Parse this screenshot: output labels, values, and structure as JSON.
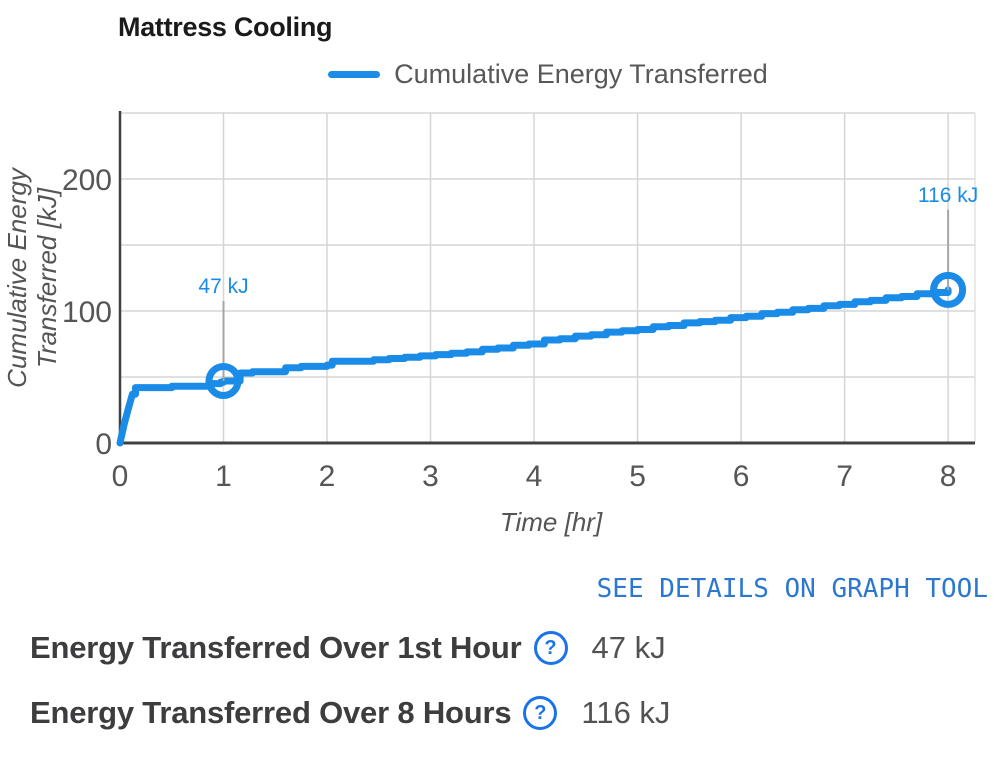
{
  "title": "Mattress Cooling",
  "link": {
    "label": "SEE DETAILS ON GRAPH TOOL"
  },
  "icons": {
    "help_glyph": "?"
  },
  "stats": [
    {
      "label": "Energy Transferred Over 1st Hour",
      "value": "47 kJ"
    },
    {
      "label": "Energy Transferred Over 8 Hours",
      "value": "116 kJ"
    }
  ],
  "colors": {
    "series": "#1a8ce8",
    "link": "#2d78cf",
    "help": "#1a73e8",
    "title": "#1a1a1a",
    "grid": "#d5d5d5",
    "axis": "#404040",
    "plot_border": "#e2e2e2",
    "tick_text": "#565656",
    "axis_title_text": "#555557",
    "annotation_line": "#a6a6a6"
  },
  "chart_data": {
    "type": "line",
    "title": "Mattress Cooling",
    "xlabel": "Time [hr]",
    "ylabel_lines": [
      "Cumulative Energy",
      "Transferred [kJ]"
    ],
    "xlim": [
      0,
      8.26
    ],
    "ylim": [
      0,
      250
    ],
    "x_ticks": [
      0,
      1,
      2,
      3,
      4,
      5,
      6,
      7,
      8
    ],
    "y_ticks_labeled": [
      0,
      100,
      200
    ],
    "y_gridlines": [
      50,
      100,
      150,
      200,
      250
    ],
    "grid": true,
    "legend_position": "top",
    "series": [
      {
        "name": "Cumulative Energy Transferred",
        "color": "#1a8ce8",
        "points": [
          [
            0,
            0
          ],
          [
            0.04,
            14
          ],
          [
            0.08,
            26
          ],
          [
            0.12,
            37
          ],
          [
            0.15,
            42
          ],
          [
            0.45,
            42
          ],
          [
            0.5,
            43
          ],
          [
            0.82,
            43
          ],
          [
            0.88,
            45
          ],
          [
            0.97,
            46
          ],
          [
            1.0,
            47
          ],
          [
            1.13,
            47
          ],
          [
            1.16,
            53
          ],
          [
            1.28,
            54
          ],
          [
            1.55,
            54
          ],
          [
            1.6,
            57
          ],
          [
            1.75,
            58
          ],
          [
            2.0,
            59
          ],
          [
            2.05,
            62
          ],
          [
            2.35,
            62
          ],
          [
            2.45,
            63
          ],
          [
            2.6,
            64
          ],
          [
            2.75,
            65
          ],
          [
            2.9,
            66
          ],
          [
            3.05,
            67
          ],
          [
            3.2,
            68
          ],
          [
            3.35,
            69
          ],
          [
            3.5,
            71
          ],
          [
            3.65,
            72
          ],
          [
            3.8,
            74
          ],
          [
            3.95,
            75
          ],
          [
            4.1,
            78
          ],
          [
            4.25,
            79
          ],
          [
            4.4,
            81
          ],
          [
            4.55,
            82
          ],
          [
            4.7,
            84
          ],
          [
            4.85,
            85
          ],
          [
            5.0,
            86
          ],
          [
            5.15,
            88
          ],
          [
            5.3,
            89
          ],
          [
            5.45,
            91
          ],
          [
            5.6,
            92
          ],
          [
            5.75,
            93
          ],
          [
            5.9,
            95
          ],
          [
            6.05,
            96
          ],
          [
            6.2,
            98
          ],
          [
            6.35,
            99
          ],
          [
            6.5,
            101
          ],
          [
            6.65,
            102
          ],
          [
            6.8,
            104
          ],
          [
            6.95,
            105
          ],
          [
            7.1,
            107
          ],
          [
            7.25,
            108
          ],
          [
            7.4,
            110
          ],
          [
            7.55,
            111
          ],
          [
            7.7,
            113
          ],
          [
            7.85,
            114
          ],
          [
            8.0,
            116
          ]
        ]
      }
    ],
    "annotations": [
      {
        "x": 1,
        "y": 47,
        "label": "47 kJ"
      },
      {
        "x": 8,
        "y": 116,
        "label": "116 kJ"
      }
    ]
  }
}
